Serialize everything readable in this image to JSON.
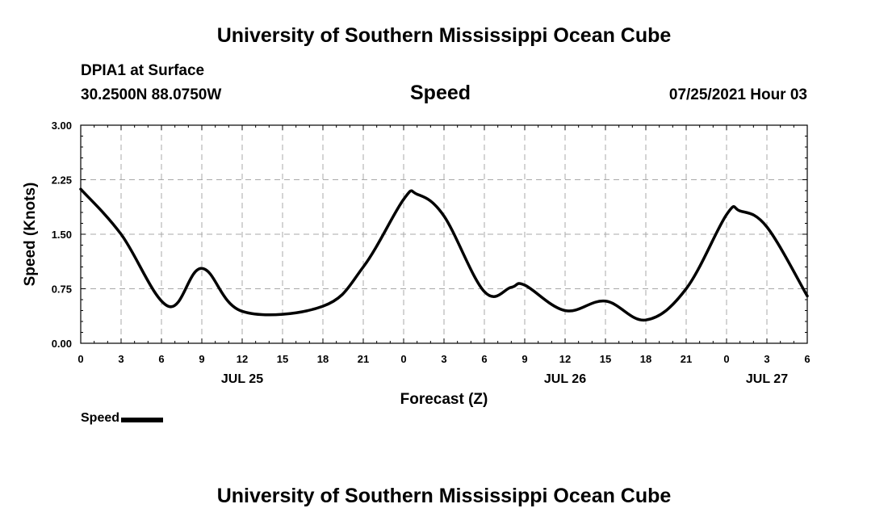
{
  "header": {
    "title": "University of Southern Mississippi Ocean Cube",
    "station": "DPIA1 at Surface",
    "coords": "30.2500N  88.0750W",
    "datetime": "07/25/2021 Hour 03"
  },
  "footer": {
    "title": "University of Southern Mississippi Ocean Cube"
  },
  "chart_data": {
    "type": "line",
    "title": "Speed",
    "xlabel": "Forecast (Z)",
    "ylabel": "Speed (Knots)",
    "ylim": [
      0,
      3
    ],
    "yticks": [
      "0.00",
      "0.75",
      "1.50",
      "2.25",
      "3.00"
    ],
    "xlim": [
      0,
      54
    ],
    "xtick_labels": [
      "0",
      "3",
      "6",
      "9",
      "12",
      "15",
      "18",
      "21",
      "0",
      "3",
      "6",
      "9",
      "12",
      "15",
      "18",
      "21",
      "0",
      "3",
      "6"
    ],
    "date_labels": [
      {
        "x": 12,
        "label": "JUL 25"
      },
      {
        "x": 36,
        "label": "JUL 26"
      },
      {
        "x": 60,
        "label": "JUL 27"
      }
    ],
    "grid": true,
    "legend_position": "bottom-left",
    "color": "#000000",
    "series": [
      {
        "name": "Speed",
        "x": [
          0,
          3,
          6.5,
          9,
          12,
          18,
          21,
          24,
          25,
          27,
          30,
          32,
          33,
          36,
          39,
          42,
          45,
          48,
          49,
          51,
          54
        ],
        "values": [
          2.12,
          1.5,
          0.51,
          1.03,
          0.44,
          0.51,
          1.05,
          1.98,
          2.05,
          1.75,
          0.71,
          0.77,
          0.8,
          0.45,
          0.58,
          0.32,
          0.75,
          1.77,
          1.82,
          1.6,
          0.65
        ]
      }
    ]
  },
  "legend": {
    "label": "Speed"
  }
}
